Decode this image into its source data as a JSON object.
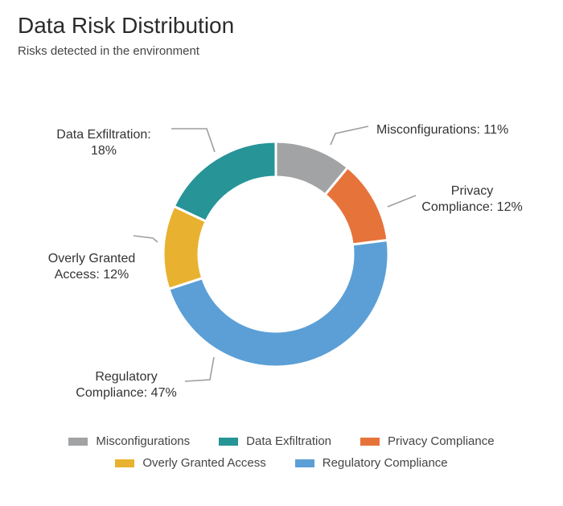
{
  "chart_data": {
    "type": "pie",
    "title": "Data Risk Distribution",
    "subtitle": "Risks detected in the environment",
    "slices": [
      {
        "name": "Misconfigurations",
        "value": 11,
        "color": "#a2a3a5",
        "label_lines": [
          "Misconfigurations: 11%"
        ]
      },
      {
        "name": "Privacy Compliance",
        "value": 12,
        "color": "#e6733a",
        "label_lines": [
          "Privacy",
          "Compliance: 12%"
        ]
      },
      {
        "name": "Regulatory Compliance",
        "value": 47,
        "color": "#5b9fd6",
        "label_lines": [
          "Regulatory",
          "Compliance: 47%"
        ]
      },
      {
        "name": "Overly Granted Access",
        "value": 12,
        "color": "#e8b230",
        "label_lines": [
          "Overly Granted",
          "Access: 12%"
        ]
      },
      {
        "name": "Data Exfiltration",
        "value": 18,
        "color": "#279497",
        "label_lines": [
          "Data Exfiltration:",
          "18%"
        ]
      }
    ],
    "legend": {
      "placement": "bottom",
      "rows": [
        [
          "Misconfigurations",
          "Data Exfiltration",
          "Privacy Compliance"
        ],
        [
          "Overly Granted Access",
          "Regulatory Compliance"
        ]
      ]
    }
  }
}
